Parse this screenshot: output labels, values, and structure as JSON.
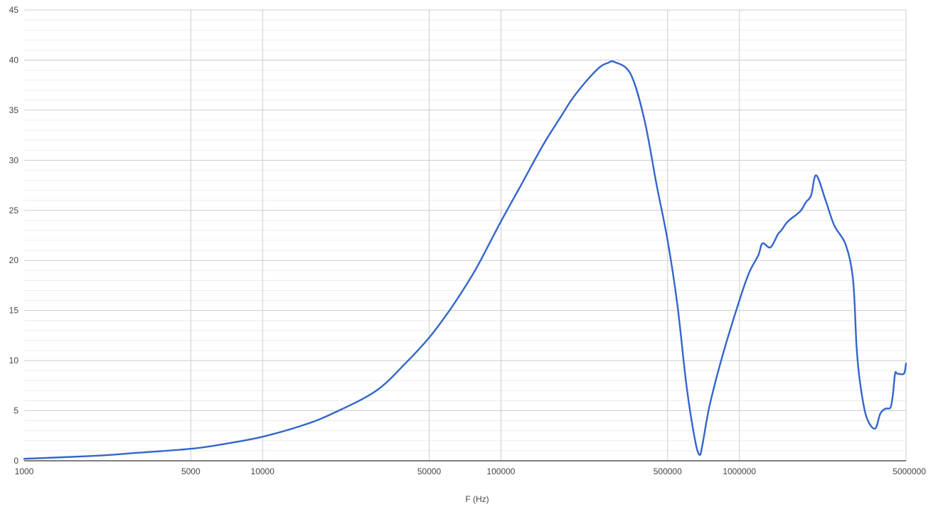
{
  "chart_data": {
    "type": "line",
    "title": "",
    "xlabel": "F (Hz)",
    "ylabel": "",
    "x_scale": "log",
    "xlim": [
      1000,
      5000000
    ],
    "ylim": [
      0,
      45
    ],
    "grid": true,
    "line_color": "#3366cc",
    "x_ticks": [
      1000,
      5000,
      10000,
      50000,
      100000,
      500000,
      1000000,
      5000000
    ],
    "x_tick_labels": [
      "1000",
      "5000",
      "10000",
      "50000",
      "100000",
      "500000",
      "1000000",
      "5000000"
    ],
    "y_ticks": [
      0,
      5,
      10,
      15,
      20,
      25,
      30,
      35,
      40,
      45
    ],
    "y_tick_labels": [
      "0",
      "5",
      "10",
      "15",
      "20",
      "25",
      "30",
      "35",
      "40",
      "45"
    ],
    "series": [
      {
        "x": [
          1000,
          2000,
          3000,
          5000,
          7000,
          10000,
          15000,
          20000,
          30000,
          40000,
          50000,
          60000,
          70000,
          80000,
          100000,
          120000,
          150000,
          180000,
          200000,
          230000,
          260000,
          280000,
          300000,
          350000,
          400000,
          450000,
          500000,
          550000,
          600000,
          650000,
          680000,
          700000,
          750000,
          850000,
          1000000,
          1100000,
          1200000,
          1250000,
          1350000,
          1450000,
          1500000,
          1600000,
          1800000,
          1900000,
          2000000,
          2100000,
          2300000,
          2500000,
          2800000,
          3000000,
          3100000,
          3200000,
          3400000,
          3700000,
          3900000,
          4100000,
          4300000,
          4400000,
          4500000,
          4600000,
          4900000,
          5000000
        ],
        "y": [
          0.2,
          0.5,
          0.8,
          1.2,
          1.7,
          2.4,
          3.6,
          4.8,
          7.0,
          9.8,
          12.3,
          14.8,
          17.2,
          19.5,
          23.9,
          27.3,
          31.5,
          34.5,
          36.2,
          38.0,
          39.3,
          39.7,
          39.8,
          38.6,
          34.0,
          27.5,
          22.0,
          15.5,
          7.5,
          2.2,
          0.6,
          1.6,
          5.5,
          10.5,
          16.0,
          18.8,
          20.5,
          21.7,
          21.3,
          22.6,
          23.0,
          23.9,
          24.9,
          25.8,
          26.5,
          28.5,
          26.0,
          23.5,
          21.5,
          18.0,
          11.5,
          8.0,
          4.5,
          3.2,
          4.7,
          5.2,
          5.3,
          6.5,
          8.7,
          8.7,
          8.7,
          9.7
        ]
      }
    ]
  }
}
